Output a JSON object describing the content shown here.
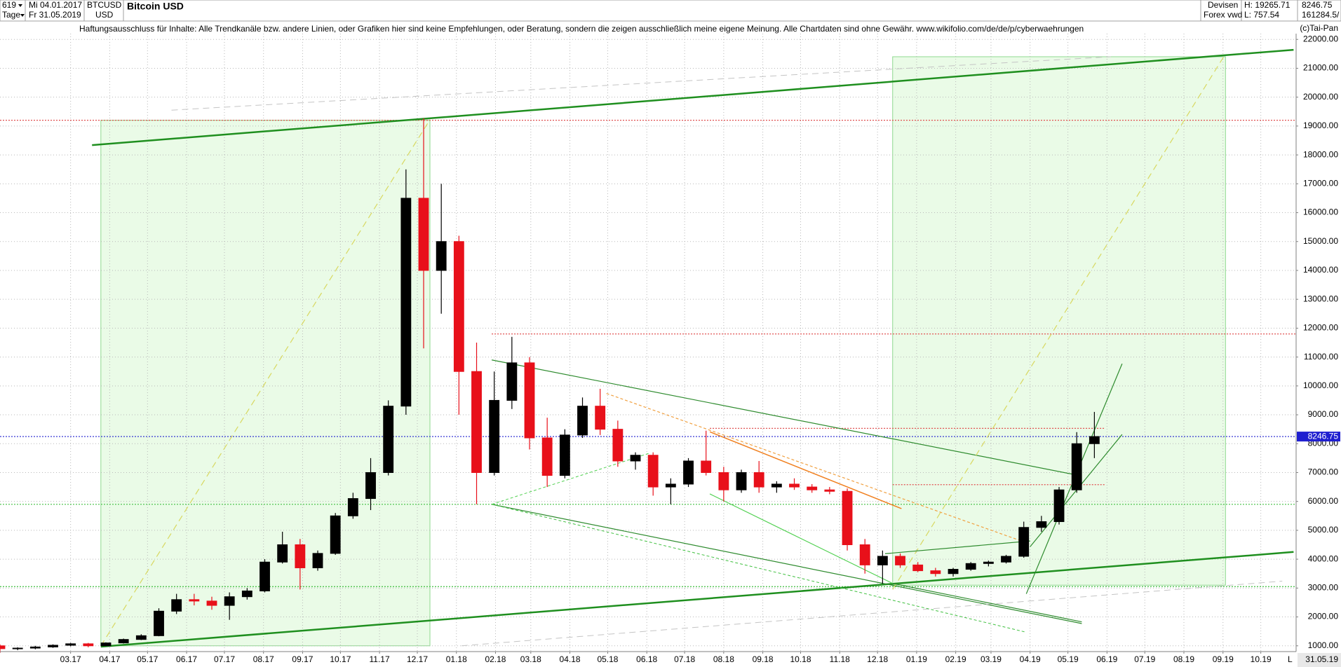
{
  "header": {
    "number": "619",
    "date_from": "Mi 04.01.2017",
    "symbol": "BTCUSD",
    "name": "Bitcoin USD",
    "period": "Tage",
    "date_to": "Fr 31.05.2019",
    "currency": "USD",
    "market": "Devisen",
    "source": "Forex vwd",
    "high": "H: 19265.71",
    "low": "L: 757.54",
    "last": "8246.75",
    "volume": "161284.5/",
    "disclaimer": "Haftungsausschluss für Inhalte: Alle Trendkanäle bzw. andere Linien, oder Grafiken hier sind keine Empfehlungen, oder Beratung, sondern die zeigen ausschließlich meine eigene Meinung. Alle Chartdaten sind ohne Gewähr.  www.wikifolio.com/de/de/p/cyberwaehrungen",
    "copyright": "(c)Tai-Pan"
  },
  "footer": {
    "date": "31.05.19",
    "scale": "L"
  },
  "chart_data": {
    "type": "candlestick",
    "up_color": "#000000",
    "down_color": "#e8101a",
    "grid": true,
    "xlim": [
      "04.01.2017",
      "29.10.2019"
    ],
    "ylim": [
      800,
      22200
    ],
    "xticks": [
      {
        "value": "01.03.2017",
        "label": "03.17"
      },
      {
        "value": "01.04.2017",
        "label": "04.17"
      },
      {
        "value": "01.05.2017",
        "label": "05.17"
      },
      {
        "value": "01.06.2017",
        "label": "06.17"
      },
      {
        "value": "01.07.2017",
        "label": "07.17"
      },
      {
        "value": "01.08.2017",
        "label": "08.17"
      },
      {
        "value": "01.09.2017",
        "label": "09.17"
      },
      {
        "value": "01.10.2017",
        "label": "10.17"
      },
      {
        "value": "01.11.2017",
        "label": "11.17"
      },
      {
        "value": "01.12.2017",
        "label": "12.17"
      },
      {
        "value": "01.01.2018",
        "label": "01.18"
      },
      {
        "value": "01.02.2018",
        "label": "02.18"
      },
      {
        "value": "01.03.2018",
        "label": "03.18"
      },
      {
        "value": "01.04.2018",
        "label": "04.18"
      },
      {
        "value": "01.05.2018",
        "label": "05.18"
      },
      {
        "value": "01.06.2018",
        "label": "06.18"
      },
      {
        "value": "01.07.2018",
        "label": "07.18"
      },
      {
        "value": "01.08.2018",
        "label": "08.18"
      },
      {
        "value": "01.09.2018",
        "label": "09.18"
      },
      {
        "value": "01.10.2018",
        "label": "10.18"
      },
      {
        "value": "01.11.2018",
        "label": "11.18"
      },
      {
        "value": "01.12.2018",
        "label": "12.18"
      },
      {
        "value": "01.01.2019",
        "label": "01.19"
      },
      {
        "value": "01.02.2019",
        "label": "02.19"
      },
      {
        "value": "01.03.2019",
        "label": "03.19"
      },
      {
        "value": "01.04.2019",
        "label": "04.19"
      },
      {
        "value": "01.05.2019",
        "label": "05.19"
      },
      {
        "value": "01.06.2019",
        "label": "06.19"
      },
      {
        "value": "01.07.2019",
        "label": "07.19"
      },
      {
        "value": "01.08.2019",
        "label": "08.19"
      },
      {
        "value": "01.09.2019",
        "label": "09.19"
      },
      {
        "value": "01.10.2019",
        "label": "10.19"
      }
    ],
    "yticks": [
      {
        "value": 1000,
        "label": "1000.00"
      },
      {
        "value": 2000,
        "label": "2000.00"
      },
      {
        "value": 3000,
        "label": "3000.00"
      },
      {
        "value": 4000,
        "label": "4000.00"
      },
      {
        "value": 5000,
        "label": "5000.00"
      },
      {
        "value": 6000,
        "label": "6000.00"
      },
      {
        "value": 7000,
        "label": "7000.00"
      },
      {
        "value": 8000,
        "label": "8000.00"
      },
      {
        "value": 9000,
        "label": "9000.00"
      },
      {
        "value": 10000,
        "label": "10000.00"
      },
      {
        "value": 11000,
        "label": "11000.00"
      },
      {
        "value": 12000,
        "label": "12000.00"
      },
      {
        "value": 13000,
        "label": "13000.00"
      },
      {
        "value": 14000,
        "label": "14000.00"
      },
      {
        "value": 15000,
        "label": "15000.00"
      },
      {
        "value": 16000,
        "label": "16000.00"
      },
      {
        "value": 17000,
        "label": "17000.00"
      },
      {
        "value": 18000,
        "label": "18000.00"
      },
      {
        "value": 19000,
        "label": "19000.00"
      },
      {
        "value": 20000,
        "label": "20000.00"
      },
      {
        "value": 21000,
        "label": "21000.00"
      },
      {
        "value": 22000,
        "label": "22000.00"
      }
    ],
    "x": [
      "04.01.2017",
      "18.01.2017",
      "01.02.2017",
      "15.02.2017",
      "01.03.2017",
      "15.03.2017",
      "29.03.2017",
      "12.04.2017",
      "26.04.2017",
      "10.05.2017",
      "24.05.2017",
      "07.06.2017",
      "21.06.2017",
      "05.07.2017",
      "19.07.2017",
      "02.08.2017",
      "16.08.2017",
      "30.08.2017",
      "13.09.2017",
      "27.09.2017",
      "11.10.2017",
      "25.10.2017",
      "08.11.2017",
      "22.11.2017",
      "06.12.2017",
      "20.12.2017",
      "03.01.2018",
      "17.01.2018",
      "31.01.2018",
      "14.02.2018",
      "28.02.2018",
      "14.03.2018",
      "28.03.2018",
      "11.04.2018",
      "25.04.2018",
      "09.05.2018",
      "23.05.2018",
      "06.06.2018",
      "20.06.2018",
      "04.07.2018",
      "18.07.2018",
      "01.08.2018",
      "15.08.2018",
      "29.08.2018",
      "12.09.2018",
      "26.09.2018",
      "10.10.2018",
      "24.10.2018",
      "07.11.2018",
      "21.11.2018",
      "05.12.2018",
      "19.12.2018",
      "02.01.2019",
      "16.01.2019",
      "30.01.2019",
      "13.02.2019",
      "27.02.2019",
      "13.03.2019",
      "27.03.2019",
      "10.04.2019",
      "24.04.2019",
      "08.05.2019",
      "22.05.2019"
    ],
    "open": [
      1000,
      900,
      920,
      960,
      1020,
      1070,
      1000,
      1100,
      1220,
      1350,
      2200,
      2600,
      2550,
      2400,
      2700,
      2900,
      3900,
      4500,
      3700,
      4200,
      5500,
      6100,
      7000,
      9300,
      16500,
      14000,
      15000,
      10500,
      7000,
      9500,
      10800,
      8200,
      6900,
      8300,
      9300,
      8500,
      7400,
      7600,
      6500,
      6600,
      7400,
      7000,
      6400,
      7000,
      6500,
      6600,
      6500,
      6400,
      6350,
      4500,
      3800,
      4100,
      3800,
      3600,
      3500,
      3650,
      3850,
      3900,
      4100,
      5100,
      5300,
      6400,
      8000
    ],
    "high": [
      1050,
      950,
      1000,
      1050,
      1100,
      1100,
      1120,
      1250,
      1400,
      2300,
      2800,
      2800,
      2700,
      2850,
      3000,
      4000,
      4950,
      4700,
      4300,
      5600,
      6300,
      7500,
      9500,
      17500,
      19265.71,
      17000,
      15200,
      11500,
      10500,
      11700,
      11000,
      8900,
      8500,
      9600,
      9900,
      8800,
      7700,
      7700,
      6800,
      7500,
      8450,
      7200,
      7100,
      7400,
      6700,
      6800,
      6600,
      6500,
      6450,
      4700,
      4300,
      4200,
      3900,
      3700,
      3700,
      3900,
      3950,
      4150,
      5300,
      5500,
      6500,
      8400,
      9100
    ],
    "low": [
      757.54,
      850,
      880,
      930,
      980,
      950,
      990,
      1080,
      1200,
      1330,
      2100,
      2400,
      2250,
      1900,
      2600,
      2850,
      3850,
      2950,
      3600,
      4150,
      5400,
      5700,
      6900,
      9000,
      11300,
      12500,
      9000,
      5900,
      6900,
      9200,
      7800,
      6500,
      6800,
      8200,
      8300,
      7200,
      7100,
      6200,
      5900,
      6500,
      6900,
      6000,
      6300,
      6300,
      6300,
      6400,
      6300,
      6250,
      4300,
      3500,
      3150,
      3700,
      3550,
      3400,
      3400,
      3600,
      3750,
      3850,
      4050,
      4950,
      5200,
      6300,
      7500
    ],
    "close": [
      900,
      920,
      960,
      1020,
      1070,
      1000,
      1100,
      1220,
      1350,
      2200,
      2600,
      2550,
      2400,
      2700,
      2900,
      3900,
      4500,
      3700,
      4200,
      5500,
      6100,
      7000,
      9300,
      16500,
      14000,
      15000,
      10500,
      7000,
      9500,
      10800,
      8200,
      6900,
      8300,
      9300,
      8500,
      7400,
      7600,
      6500,
      6600,
      7400,
      7000,
      6400,
      7000,
      6500,
      6600,
      6500,
      6400,
      6350,
      4500,
      3800,
      4100,
      3800,
      3600,
      3500,
      3650,
      3850,
      3900,
      4100,
      5100,
      5300,
      6400,
      8000,
      8246.75
    ],
    "zones": [
      {
        "x": [
          "25.03.2017",
          "11.12.2017"
        ],
        "y": [
          1000,
          19200
        ],
        "color": "#eafbe7"
      },
      {
        "x": [
          "13.12.2018",
          "03.09.2019"
        ],
        "y": [
          3100,
          21400
        ],
        "color": "#eafbe7"
      }
    ],
    "levels": [
      {
        "y": 19200,
        "color": "#e05050"
      },
      {
        "y": 11800,
        "x": [
          "29.01.2018",
          "29.10.2019"
        ],
        "color": "#e05050"
      },
      {
        "y": 8246.75,
        "label": "8246.75",
        "color": "#2020d0"
      },
      {
        "y": 8530,
        "x": [
          "21.07.2018",
          "30.05.2019"
        ],
        "color": "#e05050"
      },
      {
        "y": 6580,
        "x": [
          "13.12.2018",
          "30.05.2019"
        ],
        "color": "#e05050"
      },
      {
        "y": 5900,
        "color": "#40c040"
      },
      {
        "y": 3050,
        "color": "#40c040"
      }
    ],
    "lines": [
      {
        "x": [
          "18.03.2017",
          "27.10.2019"
        ],
        "y": [
          18340,
          21640
        ],
        "color": "#1f8f1f",
        "width": 2.5
      },
      {
        "x": [
          "25.03.2017",
          "27.10.2019"
        ],
        "y": [
          970,
          4250
        ],
        "color": "#1f8f1f",
        "width": 2.5
      },
      {
        "x": [
          "29.01.2018",
          "12.05.2019"
        ],
        "y": [
          10900,
          6880
        ],
        "color": "#2e8b2e",
        "width": 1.2
      },
      {
        "x": [
          "29.01.2018",
          "12.05.2019"
        ],
        "y": [
          5900,
          1770
        ],
        "color": "#2e8b2e",
        "width": 1.2
      },
      {
        "x": [
          "25.03.2017",
          "11.12.2017"
        ],
        "y": [
          1000,
          19220
        ],
        "color": "#d8d860",
        "width": 1.2,
        "dash": "9 6"
      },
      {
        "x": [
          "13.12.2018",
          "03.09.2019"
        ],
        "y": [
          2950,
          21500
        ],
        "color": "#d8d860",
        "width": 1.2,
        "dash": "9 6"
      },
      {
        "x": [
          "20.05.2017",
          "04.06.2019"
        ],
        "y": [
          19550,
          21400
        ],
        "color": "#c4c4c4",
        "width": 1,
        "dash": "9 6"
      },
      {
        "x": [
          "05.01.2018",
          "18.10.2019"
        ],
        "y": [
          1000,
          3240
        ],
        "color": "#c4c4c4",
        "width": 1,
        "dash": "9 6"
      },
      {
        "x": [
          "30.04.2018",
          "29.03.2019"
        ],
        "y": [
          9740,
          4570
        ],
        "color": "#f0a040",
        "width": 1.2,
        "dash": "4 3"
      },
      {
        "x": [
          "21.07.2018",
          "20.12.2018"
        ],
        "y": [
          8410,
          5750
        ],
        "color": "#f08020",
        "width": 1.5
      },
      {
        "x": [
          "21.07.2018",
          "13.12.2018"
        ],
        "y": [
          6260,
          3160
        ],
        "color": "#50d050",
        "width": 1.2
      },
      {
        "x": [
          "29.03.2019",
          "13.06.2019"
        ],
        "y": [
          2800,
          10770
        ],
        "color": "#2e8b2e",
        "width": 1.2
      },
      {
        "x": [
          "01.04.2019",
          "13.06.2019"
        ],
        "y": [
          4430,
          8320
        ],
        "color": "#2e8b2e",
        "width": 1.2
      },
      {
        "x": [
          "07.12.2018",
          "01.04.2019"
        ],
        "y": [
          4190,
          4630
        ],
        "color": "#2e8b2e",
        "width": 1.2
      },
      {
        "x": [
          "29.01.2018",
          "29.03.2019"
        ],
        "y": [
          5900,
          1470
        ],
        "color": "#40c040",
        "width": 1,
        "dash": "4 3"
      },
      {
        "x": [
          "13.12.2018",
          "12.05.2019"
        ],
        "y": [
          3160,
          1830
        ],
        "color": "#2e8b2e",
        "width": 1.2
      },
      {
        "x": [
          "29.01.2018",
          "03.06.2018"
        ],
        "y": [
          5900,
          7670
        ],
        "color": "#50d050",
        "width": 1,
        "dash": "4 3"
      }
    ]
  }
}
